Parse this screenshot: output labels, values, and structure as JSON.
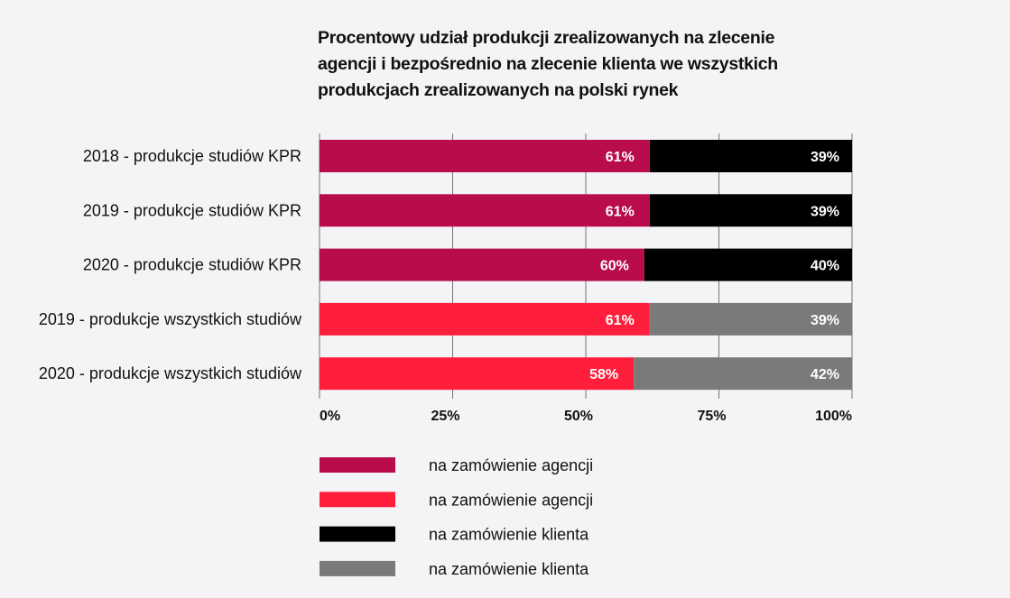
{
  "chart_data": {
    "type": "bar",
    "orientation": "horizontal",
    "stacked": true,
    "title_lines": [
      "Procentowy udział produkcji zrealizowanych na zlecenie",
      "agencji i bezpośrednio na zlecenie klienta we wszystkich",
      "produkcjach zrealizowanych na polski rynek"
    ],
    "categories": [
      "2018 - produkcje studiów KPR",
      "2019 - produkcje studiów KPR",
      "2020 - produkcje studiów KPR",
      "2019 - produkcje wszystkich studiów",
      "2020 - produkcje wszystkich studiów"
    ],
    "agency": [
      61,
      61,
      60,
      61,
      58
    ],
    "client": [
      39,
      39,
      40,
      39,
      42
    ],
    "agency_colors": [
      "#b80c4c",
      "#b80c4c",
      "#b80c4c",
      "#ff1f3d",
      "#ff1f3d"
    ],
    "client_colors": [
      "#000000",
      "#000000",
      "#000000",
      "#7a7a7a",
      "#7a7a7a"
    ],
    "xlim": [
      0,
      100
    ],
    "xticks": [
      "0%",
      "25%",
      "50%",
      "75%",
      "100%"
    ],
    "grid": true,
    "legend_position": "bottom",
    "legend": [
      {
        "label": "na zamówienie agencji",
        "color": "#b80c4c"
      },
      {
        "label": "na zamówienie agencji",
        "color": "#ff1f3d"
      },
      {
        "label": "na zamówienie klienta",
        "color": "#000000"
      },
      {
        "label": "na zamówienie klienta",
        "color": "#7a7a7a"
      }
    ]
  }
}
